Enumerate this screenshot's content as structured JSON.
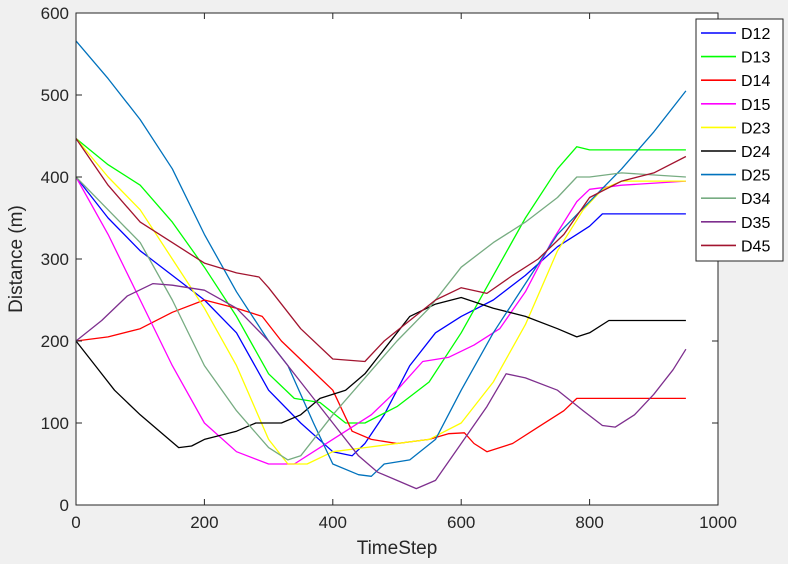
{
  "chart_data": {
    "type": "line",
    "xlabel": "TimeStep",
    "ylabel": "Distance (m)",
    "xlim": [
      0,
      1000
    ],
    "ylim": [
      0,
      600
    ],
    "xticks": [
      "0",
      "200",
      "400",
      "600",
      "800",
      "1000"
    ],
    "yticks": [
      "0",
      "100",
      "200",
      "300",
      "400",
      "500",
      "600"
    ],
    "grid": false,
    "legend_position": "top-right",
    "series": [
      {
        "name": "D12",
        "color": "#0000ff",
        "points": [
          [
            0,
            400
          ],
          [
            50,
            350
          ],
          [
            100,
            310
          ],
          [
            150,
            280
          ],
          [
            200,
            250
          ],
          [
            250,
            210
          ],
          [
            300,
            140
          ],
          [
            350,
            100
          ],
          [
            400,
            65
          ],
          [
            430,
            60
          ],
          [
            450,
            75
          ],
          [
            480,
            110
          ],
          [
            520,
            170
          ],
          [
            560,
            210
          ],
          [
            600,
            230
          ],
          [
            650,
            250
          ],
          [
            700,
            280
          ],
          [
            750,
            315
          ],
          [
            780,
            330
          ],
          [
            800,
            340
          ],
          [
            820,
            355
          ],
          [
            850,
            355
          ],
          [
            900,
            355
          ],
          [
            950,
            355
          ]
        ]
      },
      {
        "name": "D13",
        "color": "#00ff00",
        "points": [
          [
            0,
            447
          ],
          [
            50,
            415
          ],
          [
            100,
            390
          ],
          [
            150,
            345
          ],
          [
            200,
            290
          ],
          [
            250,
            230
          ],
          [
            300,
            160
          ],
          [
            340,
            130
          ],
          [
            380,
            125
          ],
          [
            420,
            100
          ],
          [
            450,
            100
          ],
          [
            500,
            120
          ],
          [
            550,
            150
          ],
          [
            600,
            210
          ],
          [
            650,
            280
          ],
          [
            700,
            350
          ],
          [
            750,
            410
          ],
          [
            780,
            437
          ],
          [
            800,
            433
          ],
          [
            850,
            433
          ],
          [
            950,
            433
          ]
        ]
      },
      {
        "name": "D14",
        "color": "#ff0000",
        "points": [
          [
            0,
            200
          ],
          [
            50,
            205
          ],
          [
            100,
            215
          ],
          [
            150,
            235
          ],
          [
            200,
            250
          ],
          [
            250,
            240
          ],
          [
            290,
            230
          ],
          [
            320,
            200
          ],
          [
            360,
            170
          ],
          [
            400,
            140
          ],
          [
            430,
            90
          ],
          [
            460,
            80
          ],
          [
            500,
            75
          ],
          [
            550,
            80
          ],
          [
            580,
            87
          ],
          [
            605,
            88
          ],
          [
            620,
            75
          ],
          [
            640,
            65
          ],
          [
            680,
            75
          ],
          [
            720,
            95
          ],
          [
            760,
            115
          ],
          [
            780,
            130
          ],
          [
            800,
            130
          ],
          [
            850,
            130
          ],
          [
            950,
            130
          ]
        ]
      },
      {
        "name": "D15",
        "color": "#ff00ff",
        "points": [
          [
            0,
            400
          ],
          [
            50,
            330
          ],
          [
            100,
            250
          ],
          [
            150,
            170
          ],
          [
            200,
            100
          ],
          [
            250,
            65
          ],
          [
            300,
            50
          ],
          [
            340,
            50
          ],
          [
            380,
            70
          ],
          [
            420,
            90
          ],
          [
            460,
            110
          ],
          [
            500,
            140
          ],
          [
            540,
            175
          ],
          [
            580,
            180
          ],
          [
            620,
            195
          ],
          [
            660,
            215
          ],
          [
            700,
            260
          ],
          [
            740,
            320
          ],
          [
            780,
            370
          ],
          [
            800,
            385
          ],
          [
            850,
            390
          ],
          [
            950,
            395
          ]
        ]
      },
      {
        "name": "D23",
        "color": "#ffff00",
        "points": [
          [
            0,
            447
          ],
          [
            50,
            400
          ],
          [
            100,
            360
          ],
          [
            150,
            300
          ],
          [
            200,
            240
          ],
          [
            250,
            170
          ],
          [
            300,
            80
          ],
          [
            330,
            50
          ],
          [
            360,
            50
          ],
          [
            400,
            65
          ],
          [
            450,
            70
          ],
          [
            500,
            75
          ],
          [
            550,
            80
          ],
          [
            600,
            100
          ],
          [
            650,
            150
          ],
          [
            700,
            220
          ],
          [
            750,
            310
          ],
          [
            790,
            360
          ],
          [
            820,
            385
          ],
          [
            850,
            395
          ],
          [
            950,
            395
          ]
        ]
      },
      {
        "name": "D24",
        "color": "#000000",
        "points": [
          [
            0,
            200
          ],
          [
            30,
            170
          ],
          [
            60,
            140
          ],
          [
            100,
            110
          ],
          [
            130,
            90
          ],
          [
            160,
            70
          ],
          [
            180,
            72
          ],
          [
            200,
            80
          ],
          [
            250,
            90
          ],
          [
            280,
            100
          ],
          [
            320,
            100
          ],
          [
            350,
            110
          ],
          [
            380,
            130
          ],
          [
            420,
            140
          ],
          [
            450,
            160
          ],
          [
            480,
            190
          ],
          [
            520,
            230
          ],
          [
            560,
            245
          ],
          [
            600,
            253
          ],
          [
            650,
            240
          ],
          [
            700,
            230
          ],
          [
            750,
            215
          ],
          [
            780,
            205
          ],
          [
            800,
            210
          ],
          [
            830,
            225
          ],
          [
            900,
            225
          ],
          [
            950,
            225
          ]
        ]
      },
      {
        "name": "D25",
        "color": "#0072bd",
        "points": [
          [
            0,
            566
          ],
          [
            50,
            520
          ],
          [
            100,
            470
          ],
          [
            150,
            410
          ],
          [
            200,
            330
          ],
          [
            250,
            260
          ],
          [
            300,
            200
          ],
          [
            330,
            170
          ],
          [
            370,
            100
          ],
          [
            400,
            50
          ],
          [
            440,
            37
          ],
          [
            460,
            35
          ],
          [
            480,
            50
          ],
          [
            520,
            55
          ],
          [
            560,
            80
          ],
          [
            600,
            140
          ],
          [
            650,
            210
          ],
          [
            700,
            270
          ],
          [
            750,
            330
          ],
          [
            800,
            370
          ],
          [
            850,
            410
          ],
          [
            900,
            455
          ],
          [
            950,
            505
          ]
        ]
      },
      {
        "name": "D34",
        "color": "#77ac82",
        "points": [
          [
            0,
            400
          ],
          [
            50,
            360
          ],
          [
            100,
            320
          ],
          [
            150,
            250
          ],
          [
            200,
            170
          ],
          [
            250,
            115
          ],
          [
            300,
            70
          ],
          [
            330,
            55
          ],
          [
            350,
            60
          ],
          [
            380,
            90
          ],
          [
            400,
            110
          ],
          [
            450,
            155
          ],
          [
            500,
            200
          ],
          [
            550,
            240
          ],
          [
            600,
            290
          ],
          [
            650,
            320
          ],
          [
            700,
            345
          ],
          [
            750,
            375
          ],
          [
            780,
            400
          ],
          [
            800,
            400
          ],
          [
            850,
            405
          ],
          [
            950,
            400
          ]
        ]
      },
      {
        "name": "D35",
        "color": "#7e2f8e",
        "points": [
          [
            0,
            200
          ],
          [
            40,
            225
          ],
          [
            80,
            255
          ],
          [
            120,
            270
          ],
          [
            150,
            268
          ],
          [
            200,
            262
          ],
          [
            250,
            240
          ],
          [
            300,
            200
          ],
          [
            350,
            150
          ],
          [
            400,
            100
          ],
          [
            440,
            60
          ],
          [
            470,
            40
          ],
          [
            500,
            30
          ],
          [
            530,
            20
          ],
          [
            560,
            30
          ],
          [
            600,
            75
          ],
          [
            640,
            120
          ],
          [
            670,
            160
          ],
          [
            700,
            155
          ],
          [
            750,
            140
          ],
          [
            790,
            115
          ],
          [
            820,
            97
          ],
          [
            840,
            95
          ],
          [
            870,
            110
          ],
          [
            900,
            135
          ],
          [
            930,
            165
          ],
          [
            950,
            190
          ]
        ]
      },
      {
        "name": "D45",
        "color": "#a2142f",
        "points": [
          [
            0,
            447
          ],
          [
            50,
            390
          ],
          [
            100,
            345
          ],
          [
            150,
            320
          ],
          [
            200,
            295
          ],
          [
            250,
            283
          ],
          [
            285,
            278
          ],
          [
            300,
            265
          ],
          [
            350,
            215
          ],
          [
            400,
            178
          ],
          [
            450,
            175
          ],
          [
            480,
            200
          ],
          [
            520,
            225
          ],
          [
            560,
            250
          ],
          [
            600,
            265
          ],
          [
            640,
            258
          ],
          [
            680,
            280
          ],
          [
            720,
            300
          ],
          [
            760,
            330
          ],
          [
            800,
            375
          ],
          [
            850,
            395
          ],
          [
            900,
            405
          ],
          [
            950,
            425
          ]
        ]
      }
    ]
  }
}
